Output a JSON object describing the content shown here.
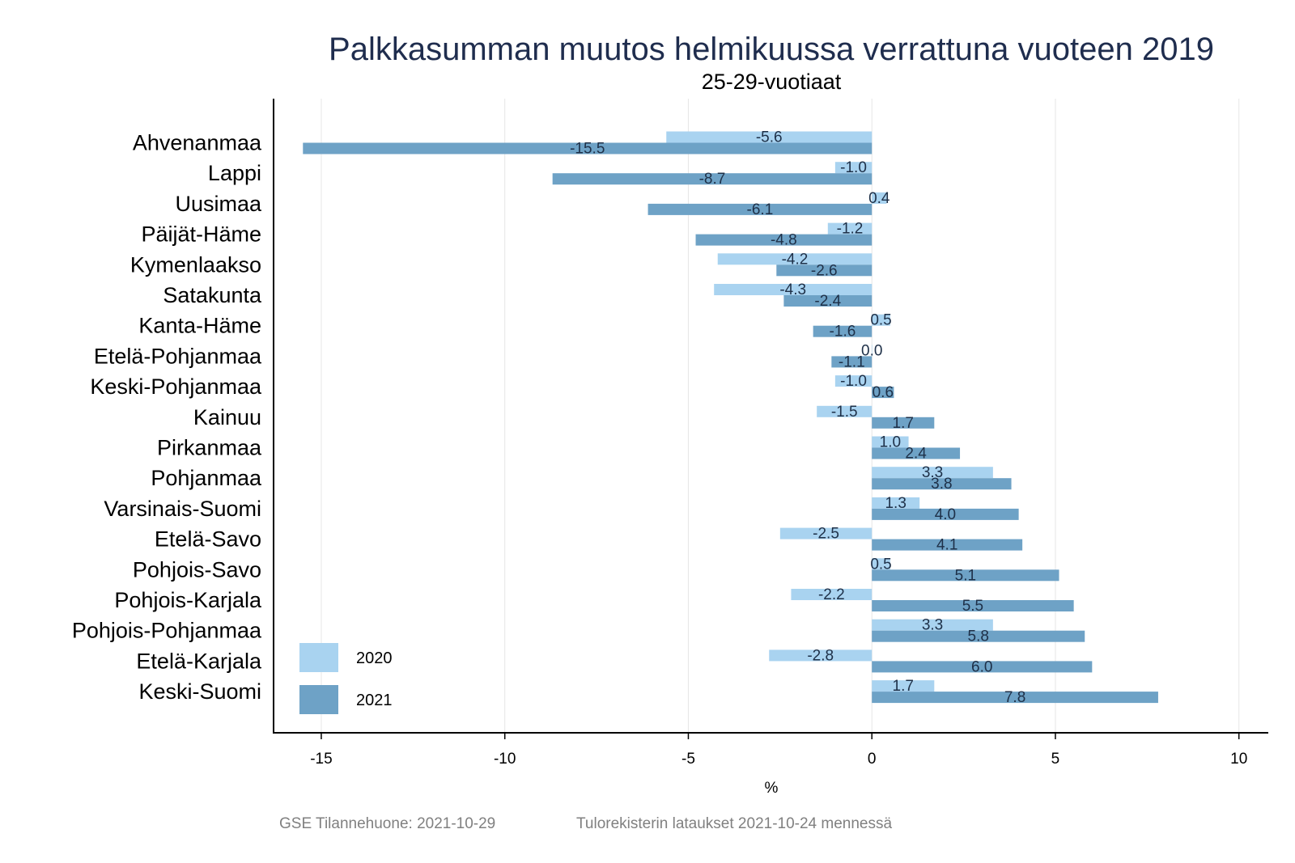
{
  "chart_data": {
    "type": "bar",
    "orientation": "horizontal",
    "title": "Palkkasumman muutos helmikuussa verrattuna vuoteen 2019",
    "subtitle": "25-29-vuotiaat",
    "xlabel": "%",
    "xlim": [
      -16.3,
      10.8
    ],
    "xticks": [
      -15,
      -10,
      -5,
      0,
      5,
      10
    ],
    "grid": "vertical",
    "legend_position": "bottom-left",
    "categories": [
      "Ahvenanmaa",
      "Lappi",
      "Uusimaa",
      "Päijät-Häme",
      "Kymenlaakso",
      "Satakunta",
      "Kanta-Häme",
      "Etelä-Pohjanmaa",
      "Keski-Pohjanmaa",
      "Kainuu",
      "Pirkanmaa",
      "Pohjanmaa",
      "Varsinais-Suomi",
      "Etelä-Savo",
      "Pohjois-Savo",
      "Pohjois-Karjala",
      "Pohjois-Pohjanmaa",
      "Etelä-Karjala",
      "Keski-Suomi"
    ],
    "series": [
      {
        "name": "2020",
        "color": "#a9d3f0",
        "values": [
          -5.6,
          -1.0,
          0.4,
          -1.2,
          -4.2,
          -4.3,
          0.5,
          0.0,
          -1.0,
          -1.5,
          1.0,
          3.3,
          1.3,
          -2.5,
          0.5,
          -2.2,
          3.3,
          -2.8,
          1.7
        ]
      },
      {
        "name": "2021",
        "color": "#6ea2c6",
        "values": [
          -15.5,
          -8.7,
          -6.1,
          -4.8,
          -2.6,
          -2.4,
          -1.6,
          -1.1,
          0.6,
          1.7,
          2.4,
          3.8,
          4.0,
          4.1,
          5.1,
          5.5,
          5.8,
          6.0,
          7.8
        ]
      }
    ]
  },
  "footer": {
    "source": "GSE Tilannehuone: 2021-10-29",
    "note": "Tulorekisterin lataukset 2021-10-24 mennessä"
  }
}
